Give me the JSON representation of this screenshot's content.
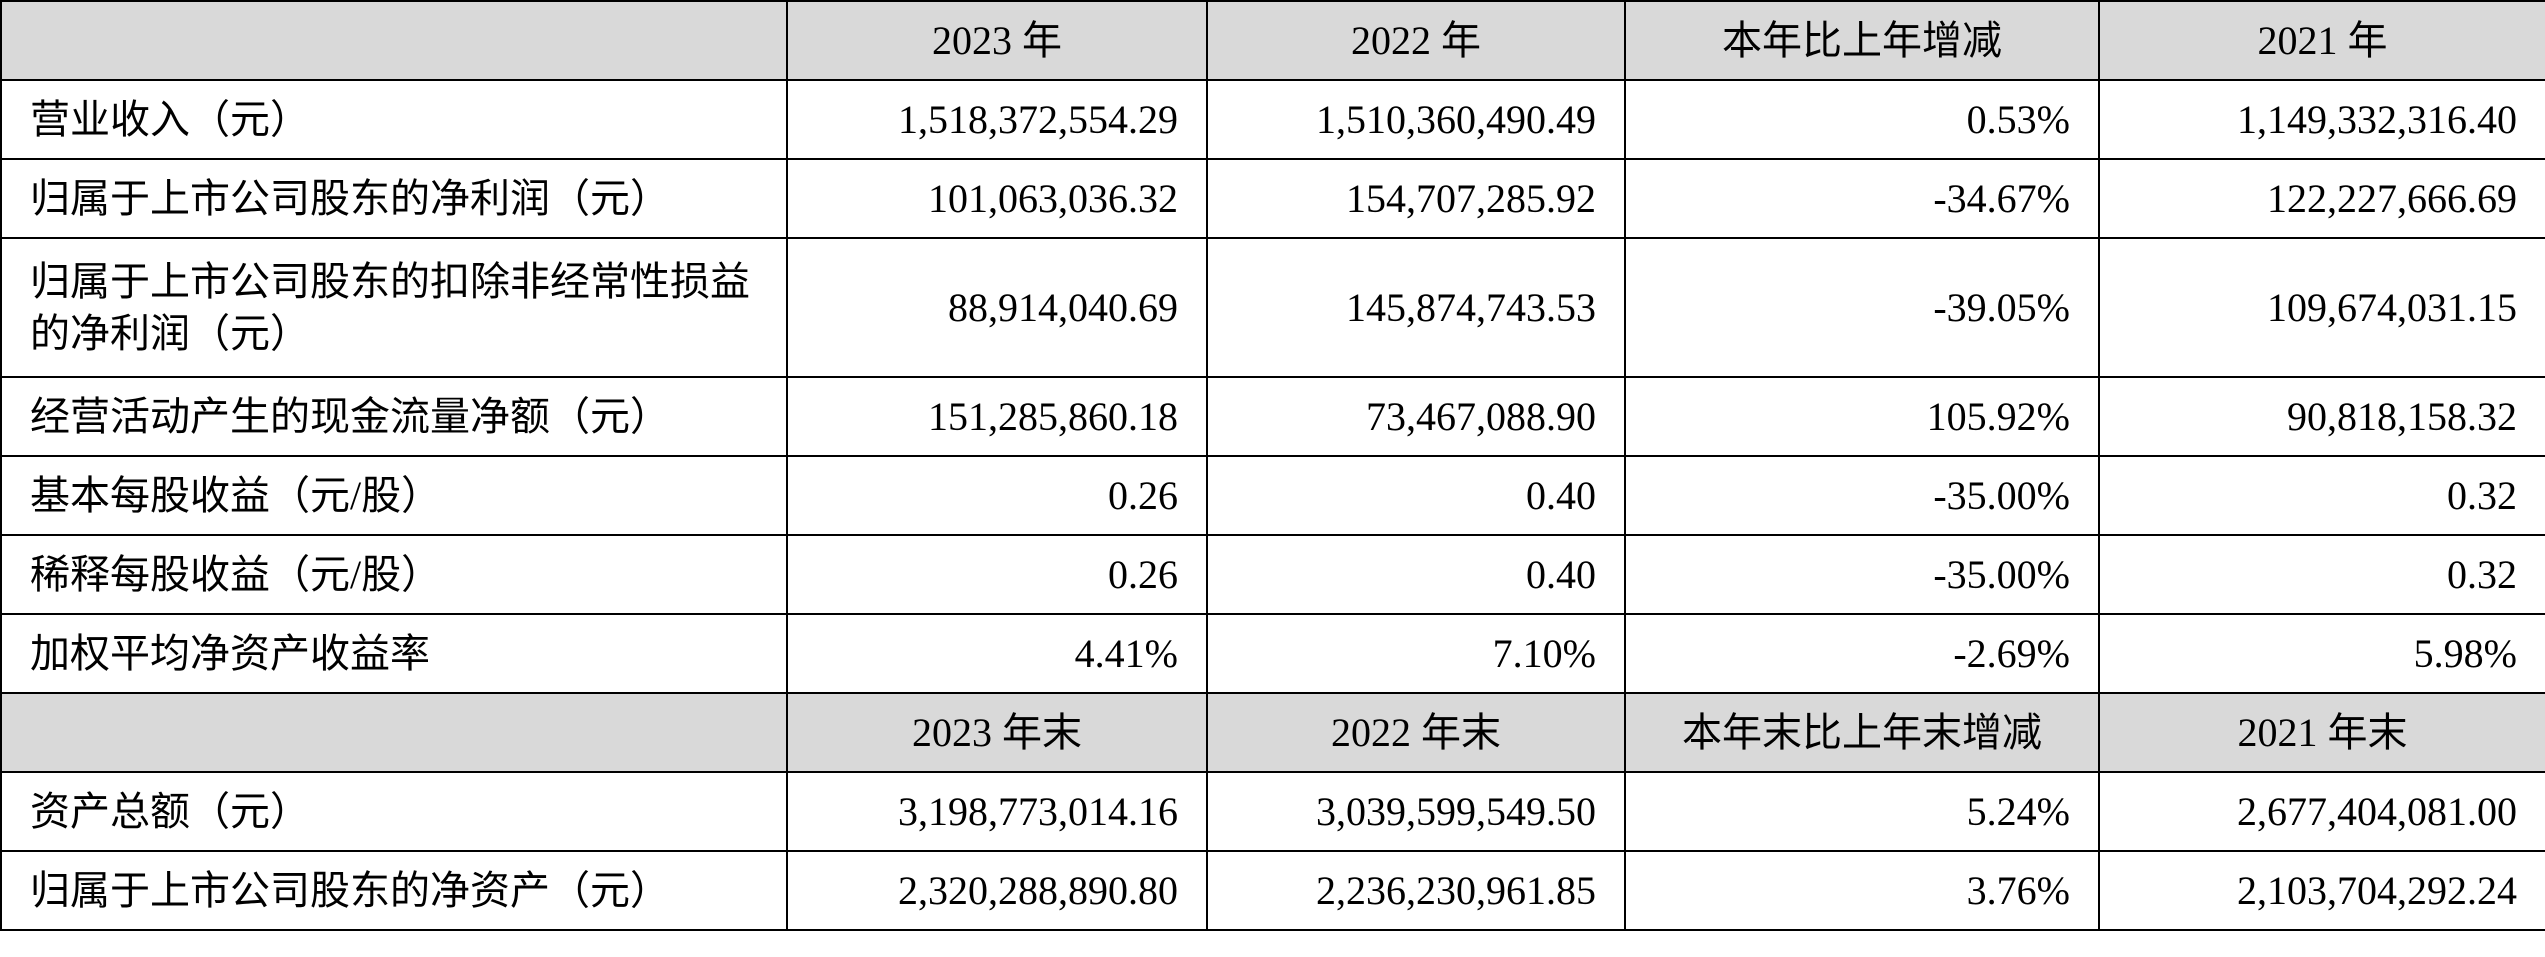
{
  "header_annual": [
    "2023 年",
    "2022 年",
    "本年比上年增减",
    "2021 年"
  ],
  "rows_annual": [
    {
      "label": "营业收入（元）",
      "v2023": "1,518,372,554.29",
      "v2022": "1,510,360,490.49",
      "change": "0.53%",
      "v2021": "1,149,332,316.40"
    },
    {
      "label": "归属于上市公司股东的净利润（元）",
      "v2023": "101,063,036.32",
      "v2022": "154,707,285.92",
      "change": "-34.67%",
      "v2021": "122,227,666.69"
    },
    {
      "label": "归属于上市公司股东的扣除非经常性损益的净利润（元）",
      "v2023": "88,914,040.69",
      "v2022": "145,874,743.53",
      "change": "-39.05%",
      "v2021": "109,674,031.15"
    },
    {
      "label": "经营活动产生的现金流量净额（元）",
      "v2023": "151,285,860.18",
      "v2022": "73,467,088.90",
      "change": "105.92%",
      "v2021": "90,818,158.32"
    },
    {
      "label": "基本每股收益（元/股）",
      "v2023": "0.26",
      "v2022": "0.40",
      "change": "-35.00%",
      "v2021": "0.32"
    },
    {
      "label": "稀释每股收益（元/股）",
      "v2023": "0.26",
      "v2022": "0.40",
      "change": "-35.00%",
      "v2021": "0.32"
    },
    {
      "label": "加权平均净资产收益率",
      "v2023": "4.41%",
      "v2022": "7.10%",
      "change": "-2.69%",
      "v2021": "5.98%"
    }
  ],
  "header_yearend": [
    "2023 年末",
    "2022 年末",
    "本年末比上年末增减",
    "2021 年末"
  ],
  "rows_yearend": [
    {
      "label": "资产总额（元）",
      "v2023": "3,198,773,014.16",
      "v2022": "3,039,599,549.50",
      "change": "5.24%",
      "v2021": "2,677,404,081.00"
    },
    {
      "label": "归属于上市公司股东的净资产（元）",
      "v2023": "2,320,288,890.80",
      "v2022": "2,236,230,961.85",
      "change": "3.76%",
      "v2021": "2,103,704,292.24"
    }
  ]
}
